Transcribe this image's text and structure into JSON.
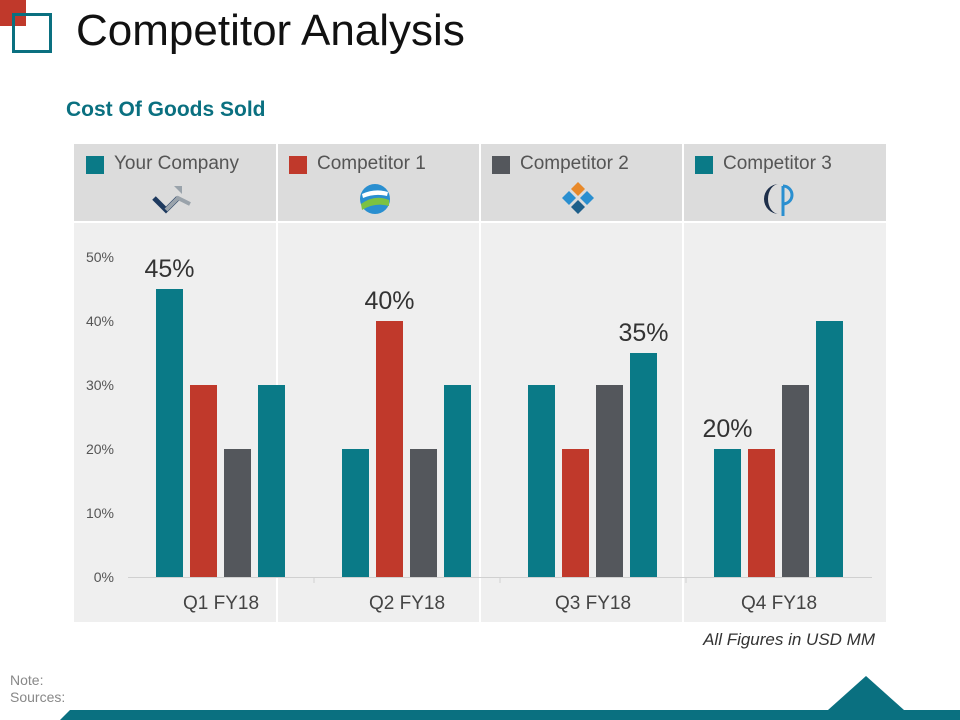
{
  "slide": {
    "title": "Competitor Analysis",
    "note_label": "Note:",
    "sources_label": "Sources:",
    "footnote": "All Figures in USD MM"
  },
  "legend": [
    {
      "name": "Your Company",
      "color": "#0a7a87",
      "logo": "chevron-logo-icon"
    },
    {
      "name": "Competitor 1",
      "color": "#c0392b",
      "logo": "globe-swoosh-logo-icon"
    },
    {
      "name": "Competitor 2",
      "color": "#54575c",
      "logo": "diamond-grid-logo-icon"
    },
    {
      "name": "Competitor 3",
      "color": "#0a7a87",
      "logo": "crescent-p-logo-icon"
    }
  ],
  "chart_data": {
    "type": "bar",
    "title": "Cost Of Goods Sold",
    "categories": [
      "Q1 FY18",
      "Q2 FY18",
      "Q3 FY18",
      "Q4 FY18"
    ],
    "series": [
      {
        "name": "Your Company",
        "values": [
          45,
          20,
          30,
          20
        ],
        "color": "#0a7a87"
      },
      {
        "name": "Competitor 1",
        "values": [
          30,
          40,
          20,
          20
        ],
        "color": "#c0392b"
      },
      {
        "name": "Competitor 2",
        "values": [
          20,
          20,
          30,
          30
        ],
        "color": "#54575c"
      },
      {
        "name": "Competitor 3",
        "values": [
          30,
          30,
          35,
          40
        ],
        "color": "#0a7a87"
      }
    ],
    "ylim": [
      0,
      50
    ],
    "yticks": [
      "0%",
      "10%",
      "20%",
      "30%",
      "40%",
      "50%"
    ],
    "annotations": [
      {
        "category": "Q1 FY18",
        "series": "Your Company",
        "text": "45%"
      },
      {
        "category": "Q2 FY18",
        "series": "Competitor 1",
        "text": "40%"
      },
      {
        "category": "Q3 FY18",
        "series": "Competitor 3",
        "text": "35%"
      },
      {
        "category": "Q4 FY18",
        "series": "Your Company",
        "text": "20%"
      }
    ],
    "grid": false,
    "legend_position": "top"
  }
}
